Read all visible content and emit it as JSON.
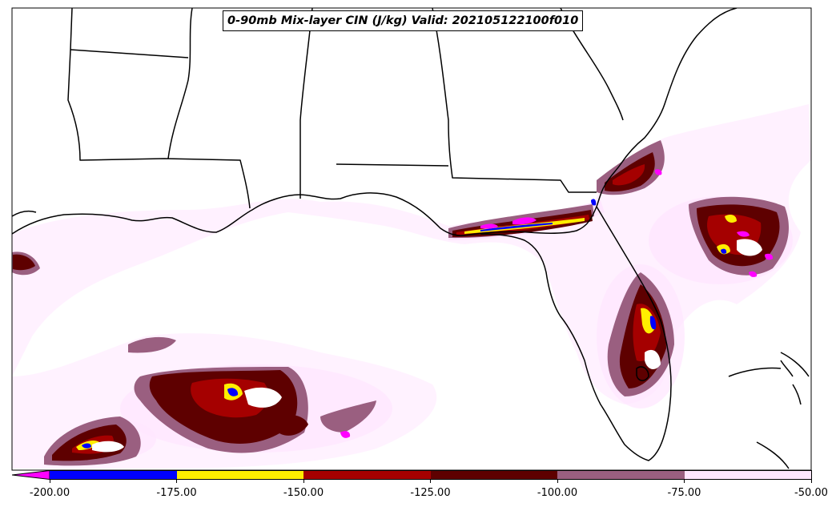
{
  "title": "0-90mb Mix-layer CIN (J/kg) Valid: 202105122100f010",
  "colorbar": {
    "extend": "min",
    "extend_color": "#ff00ff",
    "levels": [
      {
        "from": -200,
        "to": -175,
        "color": "#0000ff"
      },
      {
        "from": -175,
        "to": -150,
        "color": "#ffee00"
      },
      {
        "from": -150,
        "to": -125,
        "color": "#a50000"
      },
      {
        "from": -125,
        "to": -100,
        "color": "#5e0000"
      },
      {
        "from": -100,
        "to": -75,
        "color": "#9a5f80"
      },
      {
        "from": -75,
        "to": -50,
        "color": "#ffe6ff"
      }
    ],
    "tick_labels": [
      "-200.00",
      "-175.00",
      "-150.00",
      "-125.00",
      "-100.00",
      "-75.00",
      "-50.00"
    ]
  }
}
